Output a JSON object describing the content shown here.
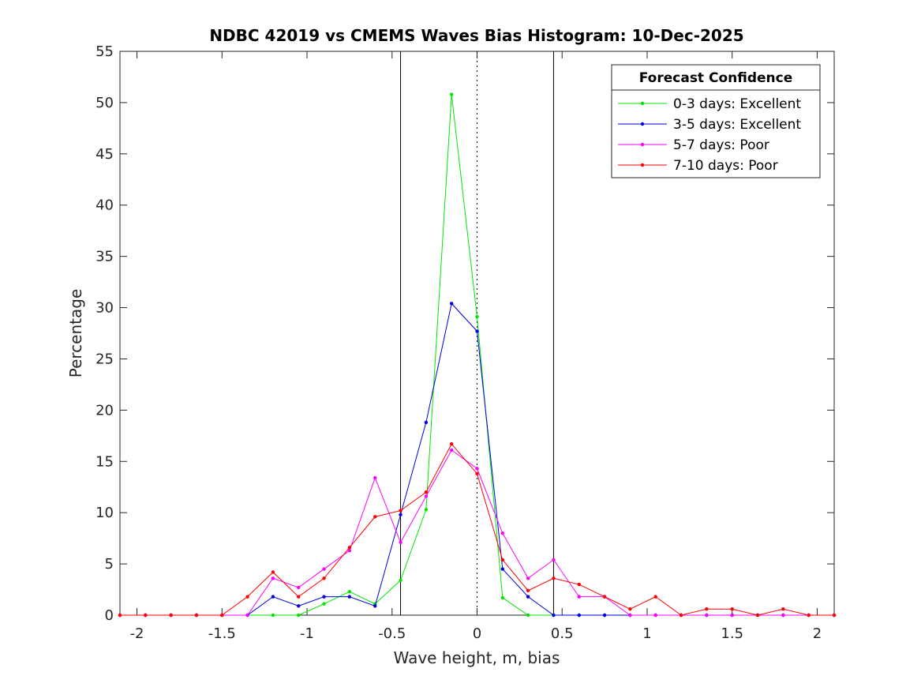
{
  "chart_data": {
    "type": "line",
    "title": "NDBC 42019 vs CMEMS Waves Bias Histogram: 10-Dec-2025",
    "xlabel": "Wave height, m, bias",
    "ylabel": "Percentage",
    "xlim": [
      -2.1,
      2.1
    ],
    "ylim": [
      0,
      55
    ],
    "xticks": [
      -2,
      -1.5,
      -1,
      -0.5,
      0,
      0.5,
      1,
      1.5,
      2
    ],
    "xtick_labels": [
      "-2",
      "-1.5",
      "-1",
      "-0.5",
      "0",
      "0.5",
      "1",
      "1.5",
      "2"
    ],
    "yticks": [
      0,
      5,
      10,
      15,
      20,
      25,
      30,
      35,
      40,
      45,
      50,
      55
    ],
    "ytick_labels": [
      "0",
      "5",
      "10",
      "15",
      "20",
      "25",
      "30",
      "35",
      "40",
      "45",
      "50",
      "55"
    ],
    "vlines_solid": [
      -0.45,
      0.45
    ],
    "vline_dotted": 0,
    "legend": {
      "title": "Forecast Confidence",
      "location": "top-right"
    },
    "x": [
      -2.1,
      -1.95,
      -1.8,
      -1.65,
      -1.5,
      -1.35,
      -1.2,
      -1.05,
      -0.9,
      -0.75,
      -0.6,
      -0.45,
      -0.3,
      -0.15,
      0,
      0.15,
      0.3,
      0.45,
      0.6,
      0.75,
      0.9,
      1.05,
      1.2,
      1.35,
      1.5,
      1.65,
      1.8,
      1.95,
      2.1
    ],
    "series": [
      {
        "name": "0-3 days: Excellent",
        "color": "#00e600",
        "values": [
          0,
          0,
          0,
          0,
          0,
          0,
          0,
          0,
          1.1,
          2.3,
          1.1,
          3.4,
          10.3,
          50.8,
          29.1,
          1.7,
          0,
          0,
          0,
          0,
          0,
          0,
          0,
          0,
          0,
          0,
          0,
          0,
          0
        ]
      },
      {
        "name": "3-5 days: Excellent",
        "color": "#0000e6",
        "values": [
          0,
          0,
          0,
          0,
          0,
          0,
          1.8,
          0.9,
          1.8,
          1.8,
          0.9,
          9.8,
          18.8,
          30.4,
          27.7,
          4.5,
          1.8,
          0,
          0,
          0,
          0,
          0,
          0,
          0,
          0,
          0,
          0,
          0,
          0
        ]
      },
      {
        "name": "5-7 days: Poor",
        "color": "#ff00ff",
        "values": [
          0,
          0,
          0,
          0,
          0,
          0,
          3.6,
          2.7,
          4.5,
          6.3,
          13.4,
          7.1,
          11.6,
          16.1,
          14.3,
          8.0,
          3.6,
          5.4,
          1.8,
          1.8,
          0,
          0,
          0,
          0,
          0,
          0,
          0,
          0,
          0
        ]
      },
      {
        "name": "7-10 days: Poor",
        "color": "#ff0000",
        "values": [
          0,
          0,
          0,
          0,
          0,
          1.8,
          4.2,
          1.8,
          3.6,
          6.6,
          9.6,
          10.2,
          12.0,
          16.7,
          13.8,
          5.4,
          2.4,
          3.6,
          3.0,
          1.8,
          0.6,
          1.8,
          0,
          0.6,
          0.6,
          0,
          0.6,
          0,
          0
        ]
      }
    ]
  }
}
